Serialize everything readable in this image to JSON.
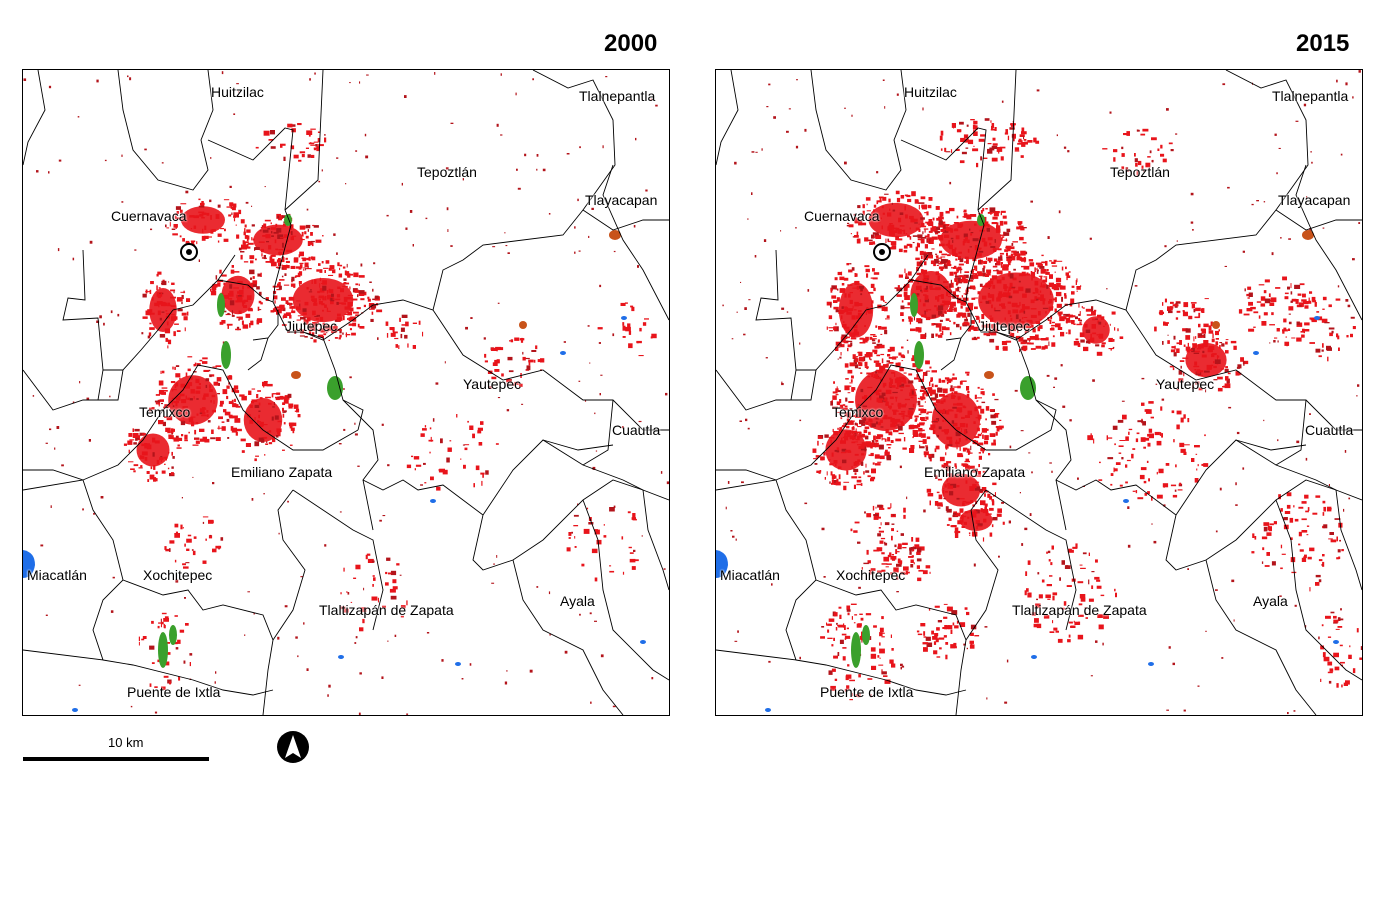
{
  "panels": [
    {
      "year": "2000",
      "labels": [
        "Huitzilac",
        "Tlalnepantla",
        "Tepoztlán",
        "Tlayacapan",
        "Cuernavaca",
        "Jiutepec",
        "Yautepec",
        "Temixco",
        "Cuautla",
        "Emiliano Zapata",
        "Miacatlán",
        "Xochitepec",
        "Tlaltizapán de Zapata",
        "Ayala",
        "Puente de Ixtla"
      ]
    },
    {
      "year": "2015",
      "labels": [
        "Huitzilac",
        "Tlalnepantla",
        "Tepoztlán",
        "Tlayacapan",
        "Cuernavaca",
        "Jiutepec",
        "Yautepec",
        "Temixco",
        "Cuautla",
        "Emiliano Zapata",
        "Miacatlán",
        "Xochitepec",
        "Tlaltizapán de Zapata",
        "Ayala",
        "Puente de Ixtla"
      ]
    }
  ],
  "scale_bar": {
    "label": "10 km"
  },
  "north_arrow": {
    "icon": "north-arrow-icon"
  },
  "colors": {
    "urban": "#e8141b",
    "dark_urban": "#b3141b",
    "green_area": "#3aa02c",
    "water": "#1f6ee8",
    "other": "#c8531a"
  }
}
